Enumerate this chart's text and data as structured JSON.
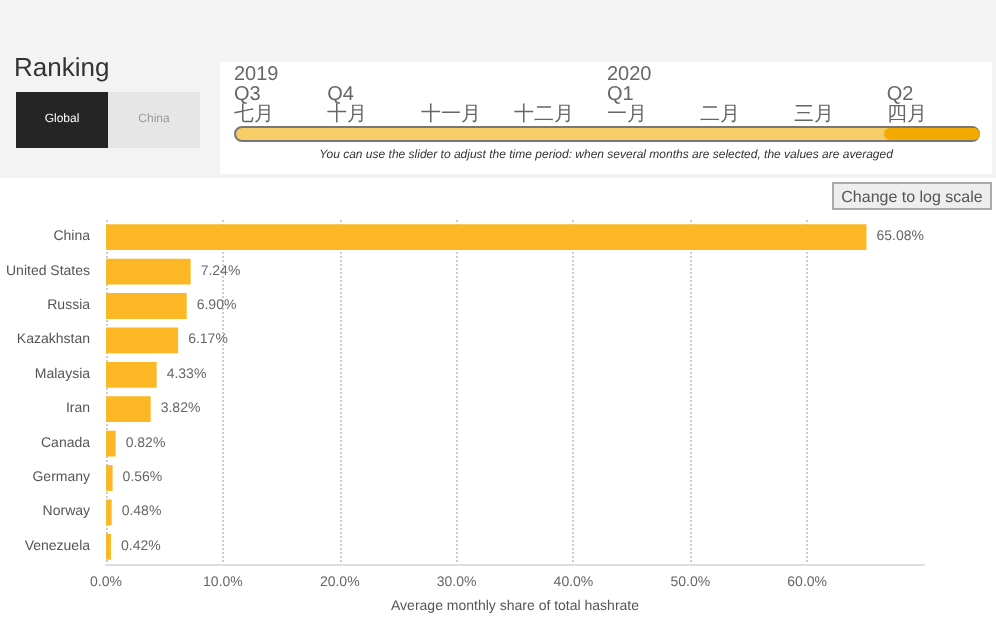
{
  "chart_data": {
    "type": "bar",
    "orientation": "horizontal",
    "title": "Ranking",
    "xlabel": "Average monthly share of total hashrate",
    "categories": [
      "China",
      "United States",
      "Russia",
      "Kazakhstan",
      "Malaysia",
      "Iran",
      "Canada",
      "Germany",
      "Norway",
      "Venezuela"
    ],
    "values": [
      65.08,
      7.24,
      6.9,
      6.17,
      4.33,
      3.82,
      0.82,
      0.56,
      0.48,
      0.42
    ],
    "value_labels": [
      "65.08%",
      "7.24%",
      "6.90%",
      "6.17%",
      "4.33%",
      "3.82%",
      "0.82%",
      "0.56%",
      "0.48%",
      "0.42%"
    ],
    "color": "#fbb824",
    "xlim": [
      0,
      70
    ],
    "xticks": [
      {
        "value": 0,
        "label": "0.0%"
      },
      {
        "value": 10,
        "label": "10.0%"
      },
      {
        "value": 20,
        "label": "20.0%"
      },
      {
        "value": 30,
        "label": "30.0%"
      },
      {
        "value": 40,
        "label": "40.0%"
      },
      {
        "value": 50,
        "label": "50.0%"
      },
      {
        "value": 60,
        "label": "60.0%"
      }
    ],
    "grid": "x",
    "annotations": [
      "Global",
      "China",
      "2019",
      "Q3",
      "七月",
      "Q4",
      "十月",
      "十一月",
      "十二月",
      "2020",
      "Q1",
      "一月",
      "二月",
      "三月",
      "Q2",
      "四月",
      "You can use the slider to adjust the time period: when several months are selected, the values are averaged",
      "Change to log scale"
    ]
  }
}
